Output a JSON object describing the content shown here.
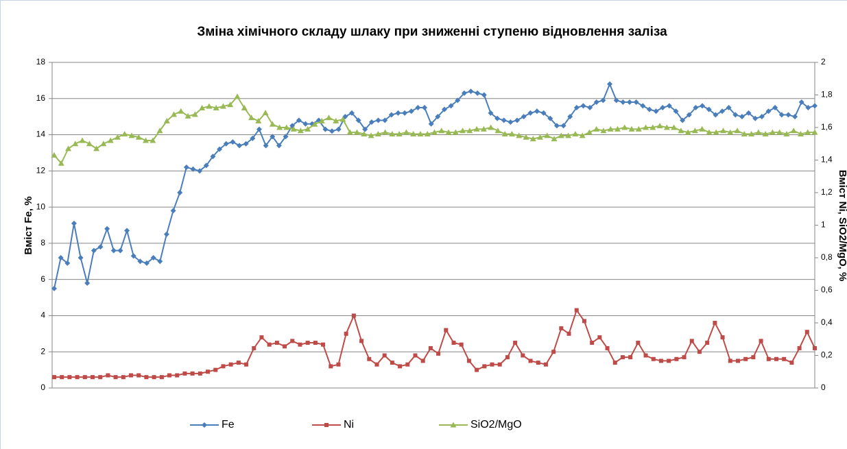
{
  "chart_data": {
    "type": "line",
    "title": "Зміна хімічного складу шлаку при зниженні ступеню відновлення заліза",
    "y_label": "Вміст Fe, %",
    "y2_label": "Вміст Ni, SiO2/MgO, %",
    "ylim": [
      0,
      18
    ],
    "yticks": [
      0,
      2,
      4,
      6,
      8,
      10,
      12,
      14,
      16,
      18
    ],
    "y2lim": [
      0,
      2
    ],
    "y2ticks": [
      0,
      {
        "value": 0.2,
        "label": "0,2"
      },
      {
        "value": 0.4,
        "label": "0,4"
      },
      {
        "value": 0.6,
        "label": "0,6"
      },
      {
        "value": 0.8,
        "label": "0,8"
      },
      1,
      {
        "value": 1.2,
        "label": "1,2"
      },
      {
        "value": 1.4,
        "label": "1,4"
      },
      {
        "value": 1.6,
        "label": "1,6"
      },
      {
        "value": 1.8,
        "label": "1,8"
      },
      2
    ],
    "grid": true,
    "legend": "bottom",
    "series": [
      {
        "name": "Fe",
        "color": "#4a7ebb",
        "marker": "diamond",
        "values": [
          5.5,
          7.2,
          6.9,
          9.1,
          7.2,
          5.8,
          7.6,
          7.8,
          8.8,
          7.6,
          7.6,
          8.7,
          7.3,
          7.0,
          6.9,
          7.2,
          7.0,
          8.5,
          9.8,
          10.8,
          12.2,
          12.1,
          12.0,
          12.3,
          12.8,
          13.2,
          13.5,
          13.6,
          13.4,
          13.5,
          13.8,
          14.3,
          13.4,
          13.9,
          13.4,
          13.9,
          14.5,
          14.8,
          14.6,
          14.6,
          14.8,
          14.3,
          14.2,
          14.3,
          15.0,
          15.2,
          14.8,
          14.3,
          14.7,
          14.8,
          14.8,
          15.1,
          15.2,
          15.2,
          15.3,
          15.5,
          15.5,
          14.6,
          15.0,
          15.4,
          15.6,
          15.9,
          16.3,
          16.4,
          16.3,
          16.2,
          15.2,
          14.9,
          14.8,
          14.7,
          14.8,
          15.0,
          15.2,
          15.3,
          15.2,
          14.9,
          14.5,
          14.5,
          15.0,
          15.5,
          15.6,
          15.5,
          15.8,
          15.9,
          16.8,
          15.9,
          15.8,
          15.8,
          15.8,
          15.6,
          15.4,
          15.3,
          15.5,
          15.6,
          15.3,
          14.8,
          15.1,
          15.5,
          15.6,
          15.4,
          15.1,
          15.3,
          15.5,
          15.1,
          15.0,
          15.2,
          14.9,
          15.0,
          15.3,
          15.5,
          15.1,
          15.1,
          15.0,
          15.8,
          15.5,
          15.6
        ]
      },
      {
        "name": "Ni",
        "color": "#be4b48",
        "marker": "square",
        "values": [
          0.6,
          0.6,
          0.6,
          0.6,
          0.6,
          0.6,
          0.6,
          0.7,
          0.6,
          0.6,
          0.7,
          0.7,
          0.6,
          0.6,
          0.6,
          0.7,
          0.7,
          0.8,
          0.8,
          0.8,
          0.9,
          1.0,
          1.2,
          1.3,
          1.4,
          1.3,
          2.2,
          2.8,
          2.4,
          2.5,
          2.3,
          2.6,
          2.4,
          2.5,
          2.5,
          2.4,
          1.2,
          1.3,
          3.0,
          4.0,
          2.6,
          1.6,
          1.3,
          1.8,
          1.4,
          1.2,
          1.3,
          1.8,
          1.5,
          2.2,
          1.9,
          3.2,
          2.5,
          2.4,
          1.5,
          1.0,
          1.2,
          1.3,
          1.3,
          1.7,
          2.5,
          1.8,
          1.5,
          1.4,
          1.3,
          2.0,
          3.3,
          3.0,
          4.3,
          3.7,
          2.5,
          2.8,
          2.2,
          1.4,
          1.7,
          1.7,
          2.5,
          1.8,
          1.6,
          1.5,
          1.5,
          1.6,
          1.7,
          2.6,
          2.0,
          2.5,
          3.6,
          2.8,
          1.5,
          1.5,
          1.6,
          1.7,
          2.6,
          1.6,
          1.6,
          1.6,
          1.4,
          2.2,
          3.1,
          2.2
        ]
      },
      {
        "name": "SiO2/MgO",
        "color": "#98b954",
        "marker": "triangle",
        "axis": "y2",
        "values": [
          1.43,
          1.38,
          1.47,
          1.5,
          1.52,
          1.5,
          1.47,
          1.5,
          1.52,
          1.54,
          1.56,
          1.55,
          1.54,
          1.52,
          1.52,
          1.58,
          1.64,
          1.68,
          1.7,
          1.67,
          1.68,
          1.72,
          1.73,
          1.72,
          1.73,
          1.74,
          1.79,
          1.72,
          1.66,
          1.64,
          1.69,
          1.62,
          1.6,
          1.6,
          1.59,
          1.58,
          1.59,
          1.62,
          1.64,
          1.66,
          1.64,
          1.65,
          1.57,
          1.57,
          1.56,
          1.55,
          1.56,
          1.57,
          1.56,
          1.56,
          1.57,
          1.56,
          1.56,
          1.56,
          1.57,
          1.58,
          1.57,
          1.57,
          1.58,
          1.58,
          1.59,
          1.59,
          1.6,
          1.58,
          1.56,
          1.56,
          1.55,
          1.54,
          1.53,
          1.54,
          1.55,
          1.53,
          1.55,
          1.55,
          1.56,
          1.55,
          1.57,
          1.59,
          1.58,
          1.59,
          1.59,
          1.6,
          1.59,
          1.59,
          1.6,
          1.6,
          1.61,
          1.6,
          1.6,
          1.58,
          1.57,
          1.58,
          1.59,
          1.57,
          1.57,
          1.58,
          1.57,
          1.58,
          1.56,
          1.56,
          1.57,
          1.56,
          1.57,
          1.57,
          1.56,
          1.58,
          1.56,
          1.57,
          1.57
        ]
      }
    ]
  }
}
